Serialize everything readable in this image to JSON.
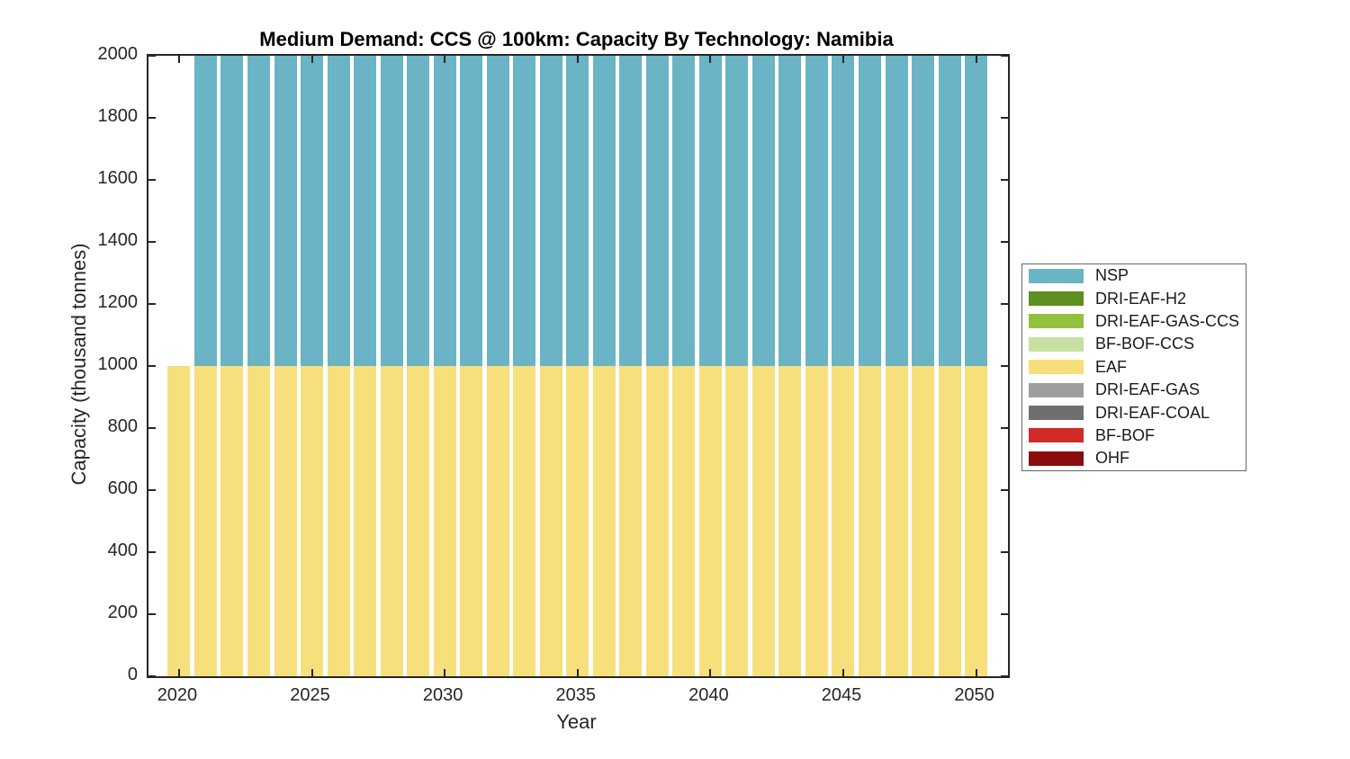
{
  "chart_data": {
    "type": "stacked-bar",
    "title": "Medium Demand: CCS @ 100km: Capacity By Technology: Namibia",
    "xlabel": "Year",
    "ylabel": "Capacity (thousand tonnes)",
    "xlim": [
      2018.85,
      2051.2
    ],
    "ylim": [
      0,
      2000
    ],
    "x_ticks": [
      2020,
      2025,
      2030,
      2035,
      2040,
      2045,
      2050
    ],
    "y_ticks": [
      0,
      200,
      400,
      600,
      800,
      1000,
      1200,
      1400,
      1600,
      1800,
      2000
    ],
    "grid": false,
    "legend_position": "right-outside",
    "years": [
      2020,
      2021,
      2022,
      2023,
      2024,
      2025,
      2026,
      2027,
      2028,
      2029,
      2030,
      2031,
      2032,
      2033,
      2034,
      2035,
      2036,
      2037,
      2038,
      2039,
      2040,
      2041,
      2042,
      2043,
      2044,
      2045,
      2046,
      2047,
      2048,
      2049,
      2050
    ],
    "series": [
      {
        "name": "EAF",
        "color": "#F7DF7C",
        "values": [
          1000,
          1000,
          1000,
          1000,
          1000,
          1000,
          1000,
          1000,
          1000,
          1000,
          1000,
          1000,
          1000,
          1000,
          1000,
          1000,
          1000,
          1000,
          1000,
          1000,
          1000,
          1000,
          1000,
          1000,
          1000,
          1000,
          1000,
          1000,
          1000,
          1000,
          1000
        ]
      },
      {
        "name": "NSP",
        "color": "#6AB4C5",
        "values": [
          0,
          1000,
          1000,
          1000,
          1000,
          1000,
          1000,
          1000,
          1000,
          1000,
          1000,
          1000,
          1000,
          1000,
          1000,
          1000,
          1000,
          1000,
          1000,
          1000,
          1000,
          1000,
          1000,
          1000,
          1000,
          1000,
          1000,
          1000,
          1000,
          1000,
          1000
        ]
      }
    ],
    "note": "Bars are stacked EAF (bottom, yellow) + NSP (top, teal); from 2021 onward totals reach the 2000 axis maximum."
  },
  "legend": {
    "items": [
      {
        "label": "NSP",
        "color": "#6AB4C5"
      },
      {
        "label": "DRI-EAF-H2",
        "color": "#5D9020"
      },
      {
        "label": "DRI-EAF-GAS-CCS",
        "color": "#92C13D"
      },
      {
        "label": "BF-BOF-CCS",
        "color": "#C8E0A2"
      },
      {
        "label": "EAF",
        "color": "#F7DF7C"
      },
      {
        "label": "DRI-EAF-GAS",
        "color": "#9E9E9E"
      },
      {
        "label": "DRI-EAF-COAL",
        "color": "#6F6F6F"
      },
      {
        "label": "BF-BOF",
        "color": "#D12B27"
      },
      {
        "label": "OHF",
        "color": "#8A0C0C"
      }
    ]
  },
  "style": {
    "axis_color": "#262626",
    "background": "#FFFFFF"
  }
}
